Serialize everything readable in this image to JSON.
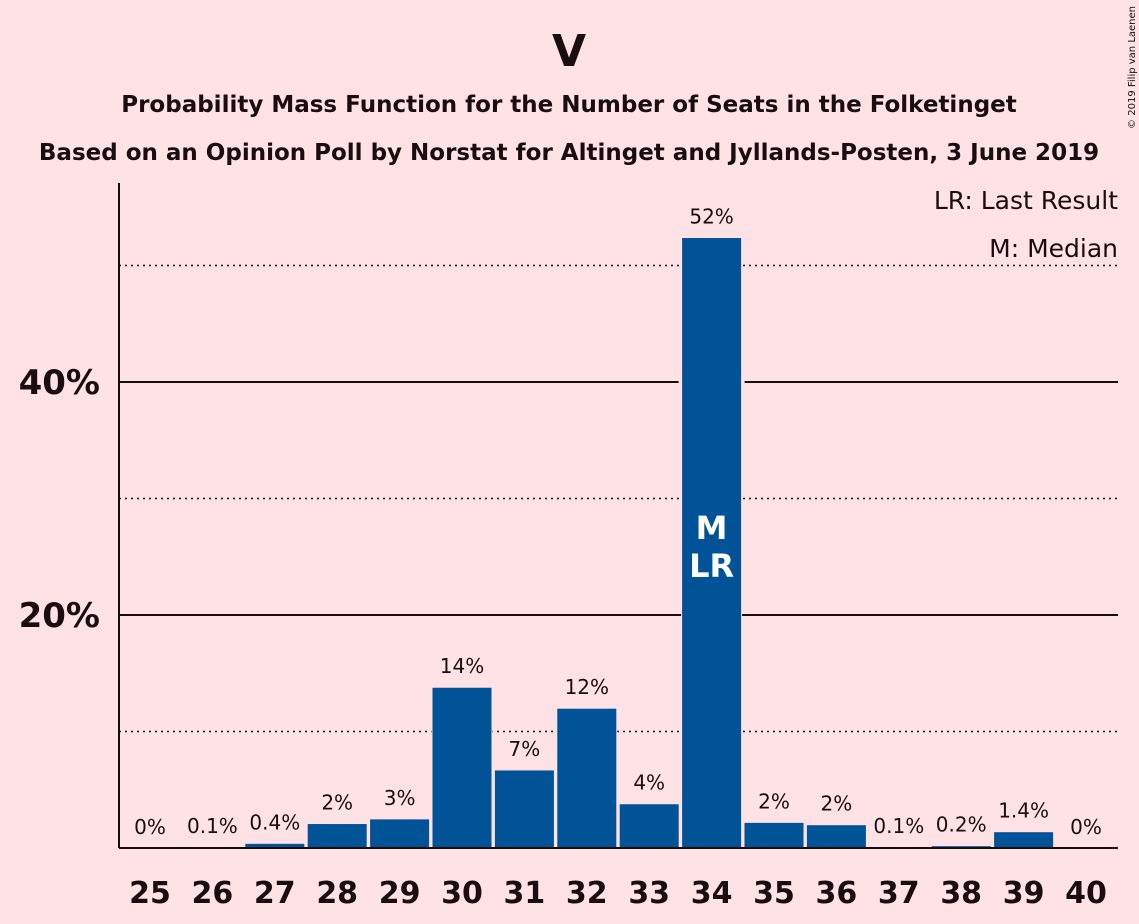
{
  "title": "V",
  "subtitle_1": "Probability Mass Function for the Number of Seats in the Folketinget",
  "subtitle_2": "Based on an Opinion Poll by Norstat for Altinget and Jyllands-Posten, 3 June 2019",
  "copyright": "© 2019 Filip van Laenen",
  "legend": {
    "last_result": "LR: Last Result",
    "median": "M: Median"
  },
  "colors": {
    "background": "#FFE2E6",
    "bar": "#005396",
    "text": "#1a0d10"
  },
  "chart_data": {
    "type": "bar",
    "categories": [
      "25",
      "26",
      "27",
      "28",
      "29",
      "30",
      "31",
      "32",
      "33",
      "34",
      "35",
      "36",
      "37",
      "38",
      "39",
      "40"
    ],
    "values": [
      0,
      0.1,
      0.4,
      2.1,
      2.5,
      13.8,
      6.7,
      12.0,
      3.8,
      52.4,
      2.2,
      2.0,
      0.1,
      0.2,
      1.4,
      0
    ],
    "data_labels": [
      "0%",
      "0.1%",
      "0.4%",
      "2%",
      "3%",
      "14%",
      "7%",
      "12%",
      "4%",
      "52%",
      "2%",
      "2%",
      "0.1%",
      "0.2%",
      "1.4%",
      "0%"
    ],
    "y_ticks": [
      {
        "value": 20,
        "label": "20%"
      },
      {
        "value": 40,
        "label": "40%"
      }
    ],
    "dotted_gridlines": [
      10,
      30,
      50
    ],
    "ylim": [
      0,
      57
    ],
    "median_seat": "34",
    "last_result_seat": "34",
    "median_marker": "M",
    "last_result_marker": "LR",
    "legend_position": "top-right"
  }
}
